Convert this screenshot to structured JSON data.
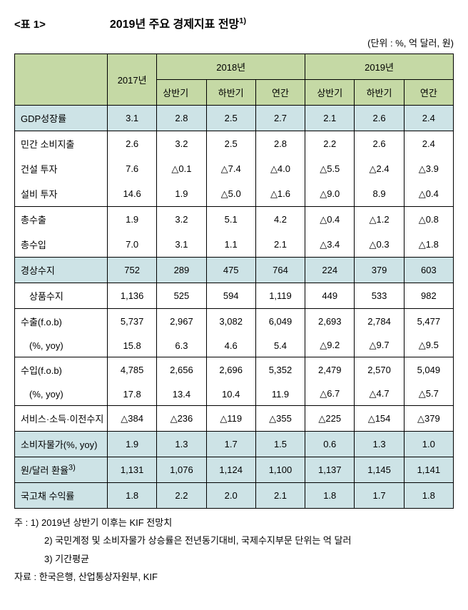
{
  "tableLabel": "<표 1>",
  "tableTitle": "2019년 주요 경제지표 전망",
  "titleSup": "1)",
  "unit": "(단위 : %, 억 달러, 원)",
  "headers": {
    "year2017": "2017년",
    "year2018": "2018년",
    "year2019": "2019년",
    "h1": "상반기",
    "h2": "하반기",
    "annual": "연간"
  },
  "rows": [
    {
      "label": "GDP성장률",
      "vals": [
        "3.1",
        "2.8",
        "2.5",
        "2.7",
        "2.1",
        "2.6",
        "2.4"
      ],
      "hl": "blue"
    },
    {
      "label": "민간 소비지출",
      "vals": [
        "2.6",
        "3.2",
        "2.5",
        "2.8",
        "2.2",
        "2.6",
        "2.4"
      ],
      "group": "first"
    },
    {
      "label": "건설 투자",
      "vals": [
        "7.6",
        "△0.1",
        "△7.4",
        "△4.0",
        "△5.5",
        "△2.4",
        "△3.9"
      ],
      "group": "mid"
    },
    {
      "label": "설비 투자",
      "vals": [
        "14.6",
        "1.9",
        "△5.0",
        "△1.6",
        "△9.0",
        "8.9",
        "△0.4"
      ],
      "group": "last"
    },
    {
      "label": "총수출",
      "vals": [
        "1.9",
        "3.2",
        "5.1",
        "4.2",
        "△0.4",
        "△1.2",
        "△0.8"
      ],
      "group": "first"
    },
    {
      "label": "총수입",
      "vals": [
        "7.0",
        "3.1",
        "1.1",
        "2.1",
        "△3.4",
        "△0.3",
        "△1.8"
      ],
      "group": "last"
    },
    {
      "label": "경상수지",
      "vals": [
        "752",
        "289",
        "475",
        "764",
        "224",
        "379",
        "603"
      ],
      "hl": "blue"
    },
    {
      "label": "상품수지",
      "vals": [
        "1,136",
        "525",
        "594",
        "1,119",
        "449",
        "533",
        "982"
      ],
      "indent": true
    },
    {
      "label": "수출(f.o.b)",
      "vals": [
        "5,737",
        "2,967",
        "3,082",
        "6,049",
        "2,693",
        "2,784",
        "5,477"
      ],
      "group": "first"
    },
    {
      "label": "(%, yoy)",
      "vals": [
        "15.8",
        "6.3",
        "4.6",
        "5.4",
        "△9.2",
        "△9.7",
        "△9.5"
      ],
      "indent": true,
      "group": "last"
    },
    {
      "label": "수입(f.o.b)",
      "vals": [
        "4,785",
        "2,656",
        "2,696",
        "5,352",
        "2,479",
        "2,570",
        "5,049"
      ],
      "group": "first"
    },
    {
      "label": "(%, yoy)",
      "vals": [
        "17.8",
        "13.4",
        "10.4",
        "11.9",
        "△6.7",
        "△4.7",
        "△5.7"
      ],
      "indent": true,
      "group": "last"
    },
    {
      "label": "서비스·소득·이전수지",
      "vals": [
        "△384",
        "△236",
        "△119",
        "△355",
        "△225",
        "△154",
        "△379"
      ]
    },
    {
      "label": "소비자물가(%, yoy)",
      "vals": [
        "1.9",
        "1.3",
        "1.7",
        "1.5",
        "0.6",
        "1.3",
        "1.0"
      ],
      "hl": "blue"
    },
    {
      "label": "원/달러 환율",
      "sup": "3)",
      "vals": [
        "1,131",
        "1,076",
        "1,124",
        "1,100",
        "1,137",
        "1,145",
        "1,141"
      ],
      "hl": "blue"
    },
    {
      "label": "국고채 수익률",
      "vals": [
        "1.8",
        "2.2",
        "2.0",
        "2.1",
        "1.8",
        "1.7",
        "1.8"
      ],
      "hl": "blue"
    }
  ],
  "notes": {
    "prefix": "주 : ",
    "lines": [
      "1) 2019년 상반기 이후는 KIF 전망치",
      "2) 국민계정 및 소비자물가 상승률은 전년동기대비, 국제수지부문 단위는 억 달러",
      "3) 기간평균"
    ],
    "sourcePrefix": "자료 : ",
    "source": "한국은행, 산업통상자원부, KIF"
  }
}
